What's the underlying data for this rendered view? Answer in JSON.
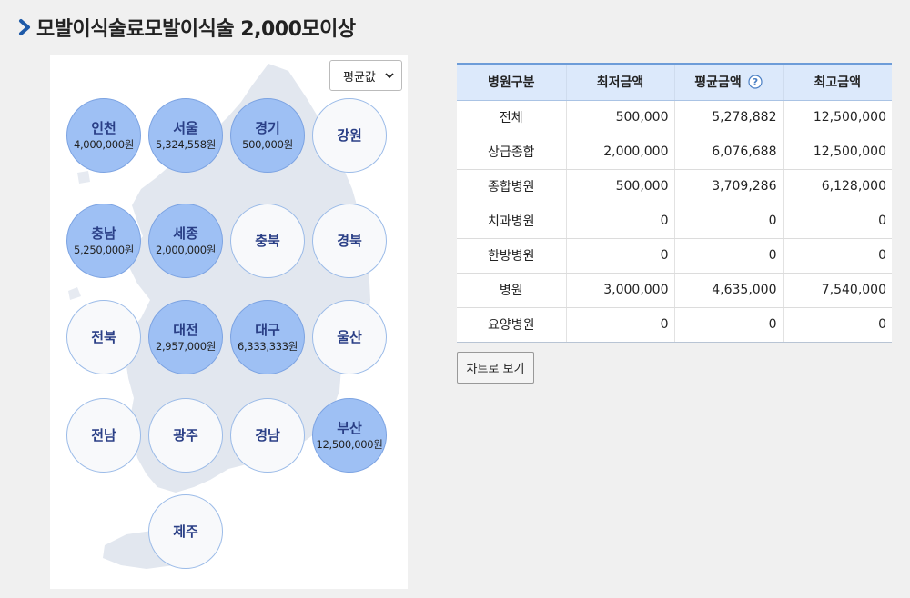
{
  "page": {
    "title": "모발이식술료모발이식술 2,000모이상",
    "title_icon": "chevron-right-icon"
  },
  "map": {
    "select": {
      "selected": "평균값"
    },
    "regions": [
      {
        "name": "인천",
        "value": "4,000,000원",
        "active": true
      },
      {
        "name": "서울",
        "value": "5,324,558원",
        "active": true
      },
      {
        "name": "경기",
        "value": "500,000원",
        "active": true
      },
      {
        "name": "강원",
        "value": "",
        "active": false
      },
      {
        "name": "충남",
        "value": "5,250,000원",
        "active": true
      },
      {
        "name": "세종",
        "value": "2,000,000원",
        "active": true
      },
      {
        "name": "충북",
        "value": "",
        "active": false
      },
      {
        "name": "경북",
        "value": "",
        "active": false
      },
      {
        "name": "전북",
        "value": "",
        "active": false
      },
      {
        "name": "대전",
        "value": "2,957,000원",
        "active": true
      },
      {
        "name": "대구",
        "value": "6,333,333원",
        "active": true
      },
      {
        "name": "울산",
        "value": "",
        "active": false
      },
      {
        "name": "전남",
        "value": "",
        "active": false
      },
      {
        "name": "광주",
        "value": "",
        "active": false
      },
      {
        "name": "경남",
        "value": "",
        "active": false
      },
      {
        "name": "부산",
        "value": "12,500,000원",
        "active": true
      },
      {
        "name": "제주",
        "value": "",
        "active": false
      }
    ]
  },
  "table": {
    "headers": [
      "병원구분",
      "최저금액",
      "평균금액",
      "최고금액"
    ],
    "rows": [
      [
        "전체",
        "500,000",
        "5,278,882",
        "12,500,000"
      ],
      [
        "상급종합",
        "2,000,000",
        "6,076,688",
        "12,500,000"
      ],
      [
        "종합병원",
        "500,000",
        "3,709,286",
        "6,128,000"
      ],
      [
        "치과병원",
        "0",
        "0",
        "0"
      ],
      [
        "한방병원",
        "0",
        "0",
        "0"
      ],
      [
        "병원",
        "3,000,000",
        "4,635,000",
        "7,540,000"
      ],
      [
        "요양병원",
        "0",
        "0",
        "0"
      ]
    ]
  },
  "buttons": {
    "chart_view": "차트로 보기"
  },
  "colors": {
    "active_region": "#9ec0f4",
    "inactive_region": "#f8f9fb",
    "region_label": "#2a3f86",
    "table_header": "#dce9fb",
    "title_icon": "#1e5aa8"
  }
}
